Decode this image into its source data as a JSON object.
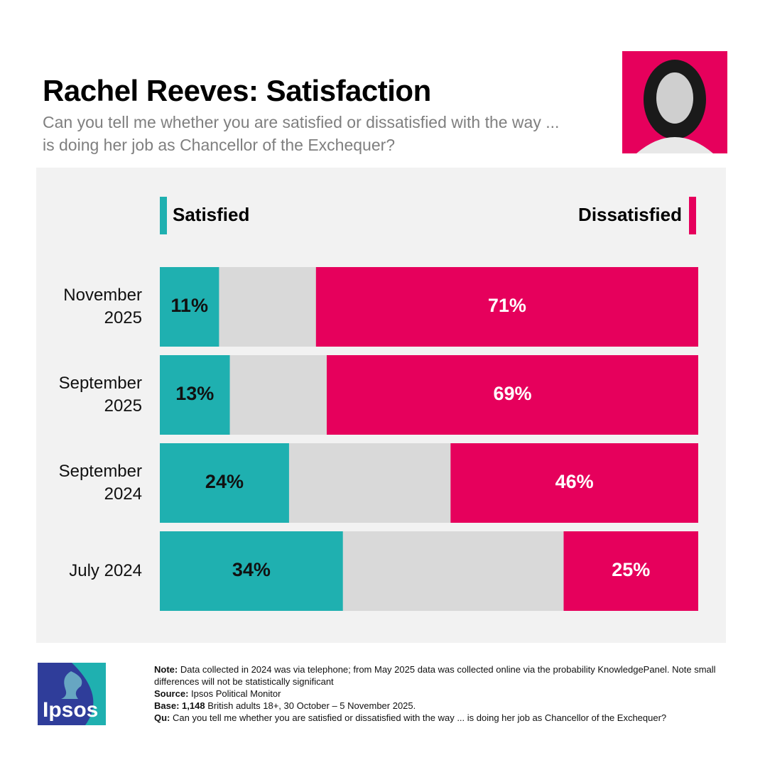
{
  "chart_data": {
    "type": "bar",
    "orientation": "horizontal",
    "stacked": true,
    "title": "Rachel Reeves: Satisfaction",
    "subtitle": "Can you tell me whether you are satisfied or dissatisfied with the way ... is doing her job as Chancellor of the Exchequer?",
    "categories": [
      "November 2025",
      "September 2025",
      "September 2024",
      "July 2024"
    ],
    "xlim": [
      0,
      100
    ],
    "rest_color": "#d9d9d9",
    "series": [
      {
        "name": "Satisfied",
        "color": "#1fb0b0",
        "anchor": "left",
        "values": [
          11,
          13,
          24,
          34
        ],
        "value_labels": [
          "11%",
          "13%",
          "24%",
          "34%"
        ]
      },
      {
        "name": "Dissatisfied",
        "color": "#e6005c",
        "anchor": "right",
        "values": [
          71,
          69,
          46,
          25
        ],
        "value_labels": [
          "71%",
          "69%",
          "46%",
          "25%"
        ]
      }
    ]
  },
  "notes": [
    {
      "label": "Note:",
      "text": "Data collected in 2024 was via telephone; from May 2025 data was collected online via the probability KnowledgePanel. Note small differences will not be statistically significant"
    },
    {
      "label": "Source:",
      "text": "Ipsos Political Monitor"
    },
    {
      "label": "Base:",
      "number": "1,148",
      "text": "British adults 18+, 30 October – 5 November 2025."
    },
    {
      "label": "Qu:",
      "text": "Can you tell me whether you are satisfied or dissatisfied with the way ... is doing her job as Chancellor of the Exchequer?"
    }
  ],
  "logo": "Ipsos"
}
